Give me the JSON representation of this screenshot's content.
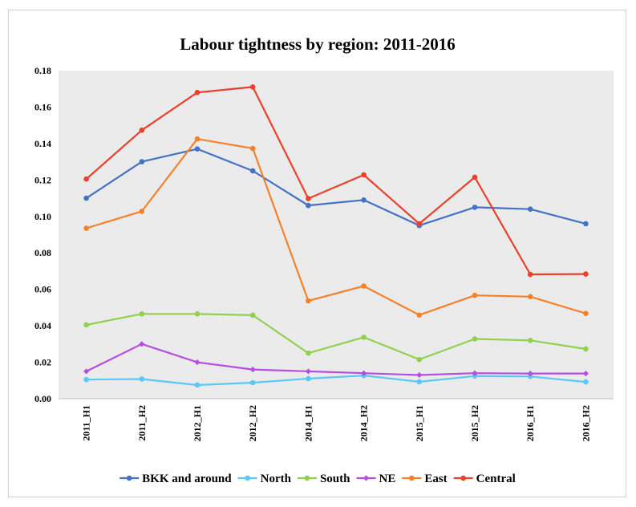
{
  "chart_data": {
    "type": "line",
    "title": "Labour tightness by region: 2011-2016",
    "xlabel": "",
    "ylabel": "",
    "categories": [
      "2011_H1",
      "2011_H2",
      "2012_H1",
      "2012_H2",
      "2014_H1",
      "2014_H2",
      "2015_H1",
      "2015_H2",
      "2016_H1",
      "2016_H2"
    ],
    "ylim": [
      0,
      0.18
    ],
    "yticks": [
      "0.00",
      "0.02",
      "0.04",
      "0.06",
      "0.08",
      "0.10",
      "0.12",
      "0.14",
      "0.16",
      "0.18"
    ],
    "grid": false,
    "legend_position": "bottom",
    "plot_background": "#ebebeb",
    "series": [
      {
        "name": "BKK and around",
        "color": "#4472c4",
        "marker": "circle",
        "values": [
          0.11,
          0.13,
          0.137,
          0.125,
          0.106,
          0.109,
          0.095,
          0.105,
          0.104,
          0.096
        ]
      },
      {
        "name": "North",
        "color": "#5bc8f5",
        "marker": "circle",
        "values": [
          0.0105,
          0.0108,
          0.0075,
          0.0088,
          0.011,
          0.0127,
          0.0093,
          0.0124,
          0.0122,
          0.0092
        ]
      },
      {
        "name": "South",
        "color": "#92d050",
        "marker": "circle",
        "values": [
          0.0405,
          0.0465,
          0.0465,
          0.0458,
          0.025,
          0.0337,
          0.0215,
          0.0328,
          0.032,
          0.0273
        ]
      },
      {
        "name": "NE",
        "color": "#b44fe0",
        "marker": "diamond",
        "values": [
          0.015,
          0.03,
          0.02,
          0.016,
          0.015,
          0.014,
          0.013,
          0.014,
          0.0138,
          0.0138
        ]
      },
      {
        "name": "East",
        "color": "#f5822b",
        "marker": "circle",
        "values": [
          0.0935,
          0.1028,
          0.1425,
          0.1373,
          0.0537,
          0.0618,
          0.0459,
          0.0567,
          0.056,
          0.0468
        ]
      },
      {
        "name": "Central",
        "color": "#e8412c",
        "marker": "circle",
        "values": [
          0.1205,
          0.1473,
          0.168,
          0.171,
          0.1098,
          0.1228,
          0.096,
          0.1215,
          0.0682,
          0.0684
        ]
      }
    ]
  }
}
